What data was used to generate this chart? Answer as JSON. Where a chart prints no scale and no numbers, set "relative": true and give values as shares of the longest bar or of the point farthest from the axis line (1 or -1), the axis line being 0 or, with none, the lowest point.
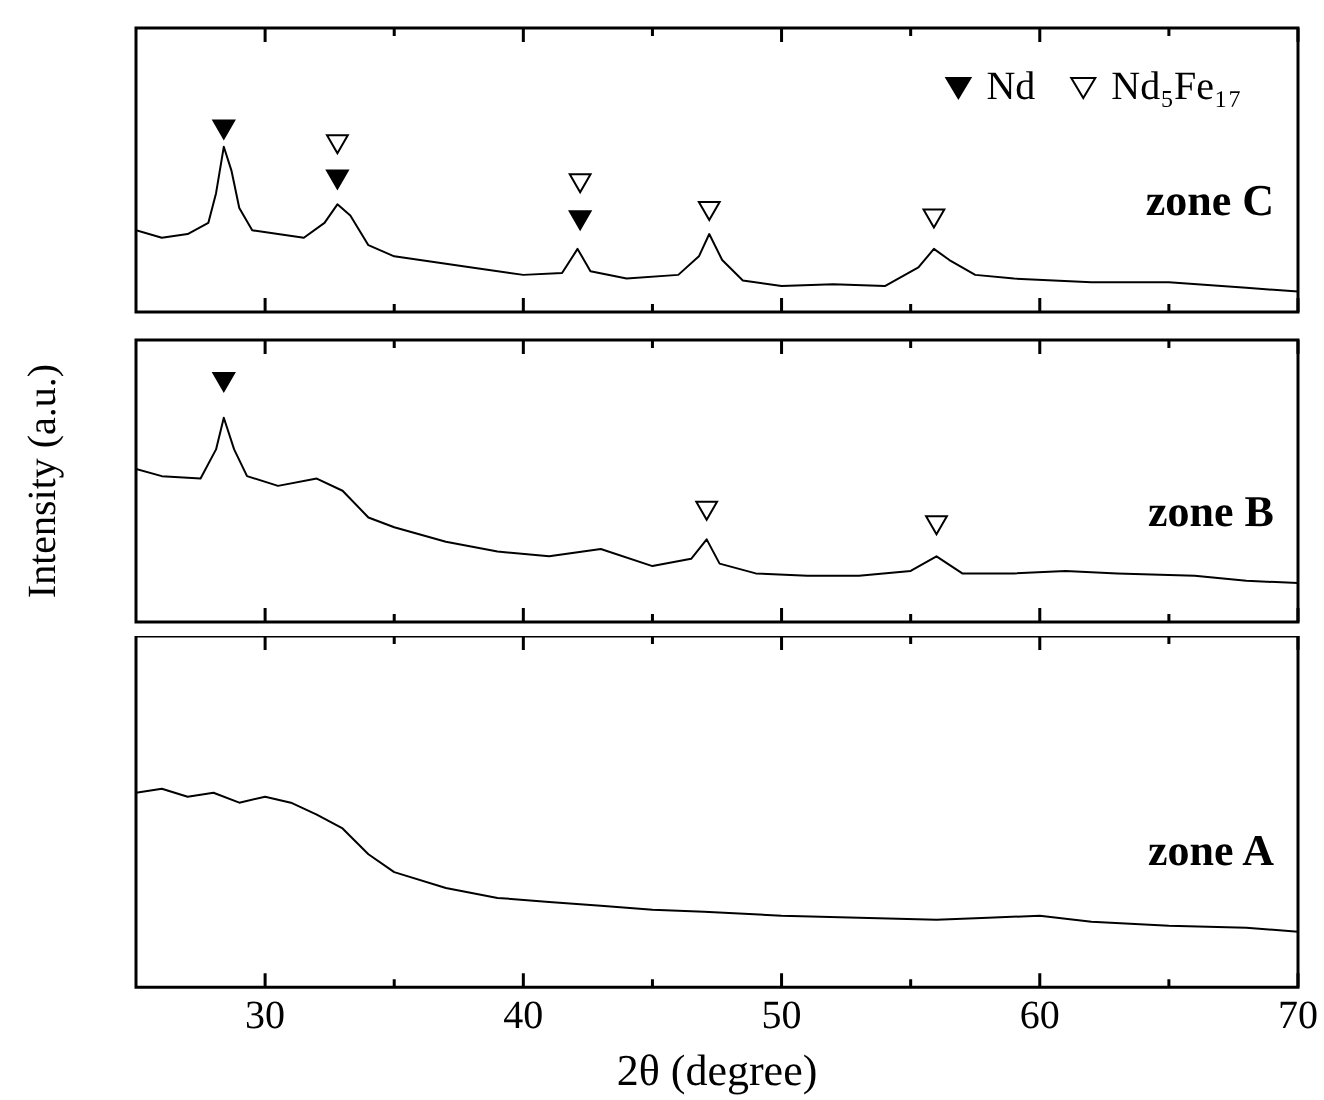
{
  "chart_data": [
    {
      "type": "line",
      "relative": true,
      "xlim": [
        25,
        70
      ],
      "xticks": [
        30,
        {
          "value": 35,
          "label": null
        },
        40,
        {
          "value": 45,
          "label": null
        },
        50,
        {
          "value": 55,
          "label": null
        },
        60,
        {
          "value": 65,
          "label": null
        },
        70
      ],
      "tick_labels": false,
      "legend": "top right",
      "annotations": [
        "zone C"
      ],
      "series": [
        {
          "type": "line",
          "color": "#000000",
          "x": [
            25,
            26,
            27,
            27.8,
            28.1,
            28.4,
            28.7,
            29,
            29.5,
            30.5,
            31.5,
            32.3,
            32.8,
            33.3,
            34,
            35,
            36,
            38,
            40,
            41.5,
            42.1,
            42.6,
            44,
            46,
            46.8,
            47.2,
            47.7,
            48.5,
            50,
            52,
            54,
            55.3,
            55.9,
            56.5,
            57.5,
            59,
            62,
            65,
            68,
            70
          ],
          "values": [
            0.44,
            0.4,
            0.42,
            0.48,
            0.64,
            0.89,
            0.76,
            0.56,
            0.44,
            0.42,
            0.4,
            0.48,
            0.58,
            0.52,
            0.36,
            0.3,
            0.28,
            0.24,
            0.2,
            0.21,
            0.34,
            0.22,
            0.18,
            0.2,
            0.3,
            0.42,
            0.28,
            0.17,
            0.14,
            0.15,
            0.14,
            0.24,
            0.34,
            0.28,
            0.2,
            0.18,
            0.16,
            0.16,
            0.13,
            0.11
          ]
        },
        {
          "type": "scatter",
          "name": "Nd",
          "marker": "triangle",
          "color": "#000000",
          "x": [
            28.4,
            32.8,
            42.2
          ],
          "values": [
            1,
            0.73,
            0.51
          ]
        },
        {
          "type": "scatter",
          "name": "Nd₅Fe₁₇",
          "marker": "triangle",
          "color": "#ffffff",
          "x": [
            32.8,
            42.2,
            47.2,
            55.9
          ],
          "values": [
            0.92,
            0.71,
            0.56,
            0.52
          ]
        }
      ]
    },
    {
      "type": "line",
      "relative": true,
      "xlim": [
        25,
        70
      ],
      "xticks": [
        30,
        {
          "value": 35,
          "label": null
        },
        40,
        {
          "value": 45,
          "label": null
        },
        50,
        {
          "value": 55,
          "label": null
        },
        60,
        {
          "value": 65,
          "label": null
        },
        70
      ],
      "tick_labels": false,
      "ylabel": "Intensity (a.u.)",
      "annotations": [
        "zone B"
      ],
      "series": [
        {
          "type": "line",
          "color": "#000000",
          "x": [
            25,
            26,
            27.5,
            28.1,
            28.4,
            28.8,
            29.3,
            30.5,
            32,
            33,
            34,
            35,
            37,
            39,
            41,
            43,
            45,
            46.5,
            47.1,
            47.6,
            49,
            51,
            53,
            55,
            56,
            57,
            59,
            61,
            63,
            66,
            68,
            70
          ],
          "values": [
            0.63,
            0.6,
            0.59,
            0.71,
            0.84,
            0.71,
            0.6,
            0.56,
            0.59,
            0.54,
            0.43,
            0.39,
            0.33,
            0.29,
            0.27,
            0.3,
            0.23,
            0.26,
            0.34,
            0.24,
            0.2,
            0.19,
            0.19,
            0.21,
            0.27,
            0.2,
            0.2,
            0.21,
            0.2,
            0.19,
            0.17,
            0.16
          ]
        },
        {
          "type": "scatter",
          "marker": "triangle",
          "color": "#000000",
          "x": [
            28.4
          ],
          "values": [
            1
          ]
        },
        {
          "type": "scatter",
          "marker": "triangle",
          "color": "#ffffff",
          "x": [
            47.1,
            56
          ],
          "values": [
            0.47,
            0.41
          ]
        }
      ]
    },
    {
      "type": "line",
      "relative": true,
      "xlim": [
        25,
        70
      ],
      "xticks": [
        30,
        {
          "value": 35,
          "label": null
        },
        40,
        {
          "value": 45,
          "label": null
        },
        50,
        {
          "value": 55,
          "label": null
        },
        60,
        {
          "value": 65,
          "label": null
        },
        70
      ],
      "tick_labels": "x",
      "xlabel": "2θ (degree)",
      "annotations": [
        "zone A"
      ],
      "series": [
        {
          "type": "line",
          "color": "#000000",
          "x": [
            25,
            26,
            27,
            28,
            29,
            30,
            31,
            32,
            33,
            34,
            35,
            37,
            39,
            41,
            43,
            45,
            47,
            50,
            53,
            56,
            58,
            60,
            62,
            65,
            68,
            70
          ],
          "values": [
            0.98,
            1,
            0.96,
            0.98,
            0.93,
            0.96,
            0.93,
            0.87,
            0.8,
            0.67,
            0.58,
            0.5,
            0.45,
            0.43,
            0.41,
            0.39,
            0.38,
            0.36,
            0.35,
            0.34,
            0.35,
            0.36,
            0.33,
            0.31,
            0.3,
            0.28
          ]
        }
      ]
    }
  ]
}
